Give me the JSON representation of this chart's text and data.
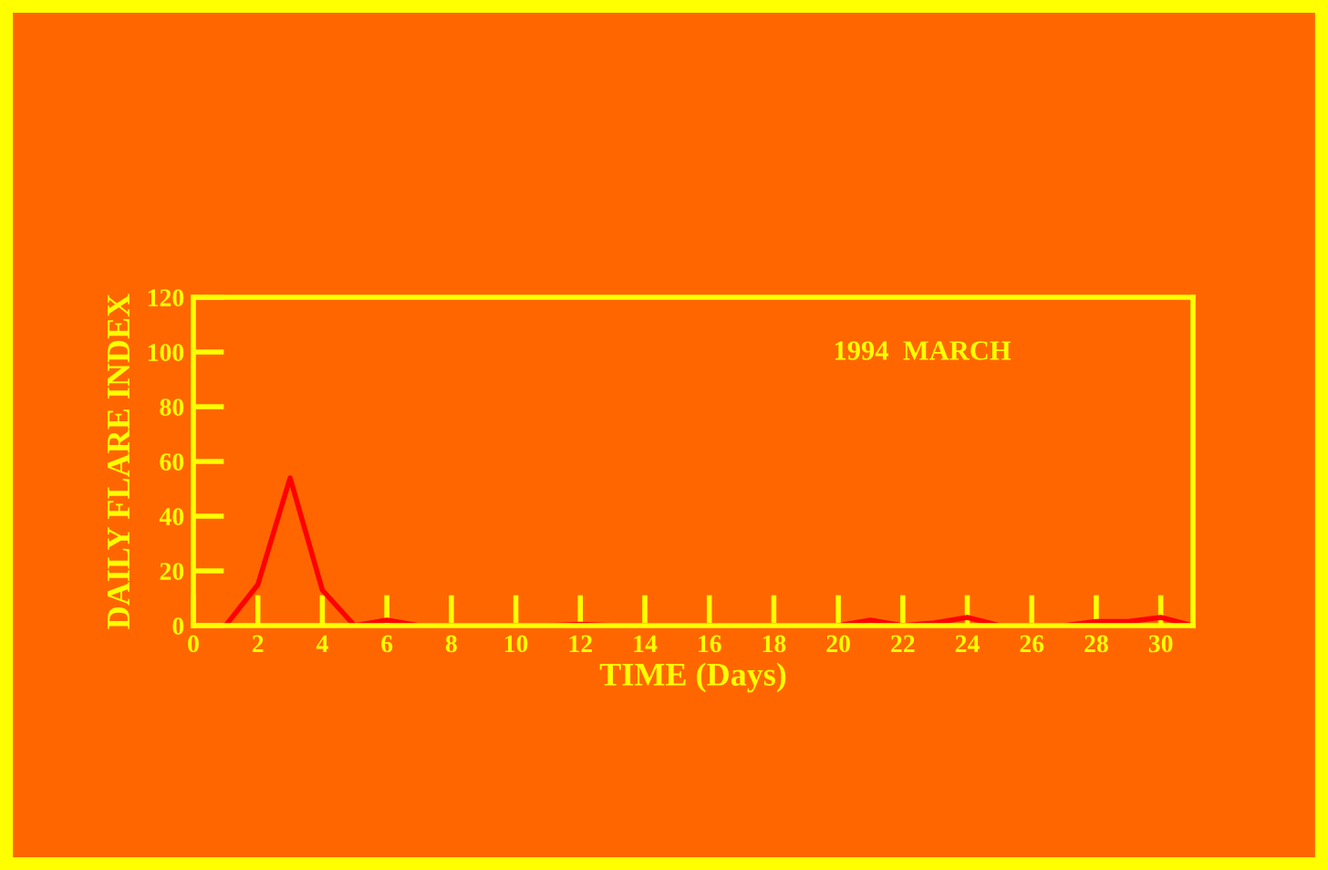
{
  "chart_data": {
    "type": "line",
    "xlabel": "TIME (Days)",
    "ylabel": "DAILY FLARE INDEX",
    "annotations": [
      "1994  MARCH"
    ],
    "x": [
      1,
      2,
      3,
      4,
      5,
      6,
      7,
      8,
      9,
      10,
      11,
      12,
      13,
      14,
      15,
      16,
      17,
      18,
      19,
      20,
      21,
      22,
      23,
      24,
      25,
      26,
      27,
      28,
      29,
      30,
      31
    ],
    "series": [
      {
        "color": "#ff0000",
        "values": [
          0,
          15,
          54,
          13,
          0,
          2,
          0,
          0,
          0,
          0,
          0,
          0.5,
          0,
          0,
          0,
          0,
          0,
          0,
          0,
          0,
          2,
          0,
          1,
          3,
          0,
          0,
          0,
          1.5,
          1.5,
          3,
          0
        ]
      }
    ],
    "xlim": [
      0,
      31
    ],
    "xticks": [
      0,
      2,
      4,
      6,
      8,
      10,
      12,
      14,
      16,
      18,
      20,
      22,
      24,
      26,
      28,
      30
    ],
    "ylim": [
      0,
      120
    ],
    "yticks": [
      0,
      20,
      40,
      60,
      80,
      100,
      120
    ],
    "grid": false,
    "legend": false,
    "marker": "none",
    "line_style": "solid"
  }
}
